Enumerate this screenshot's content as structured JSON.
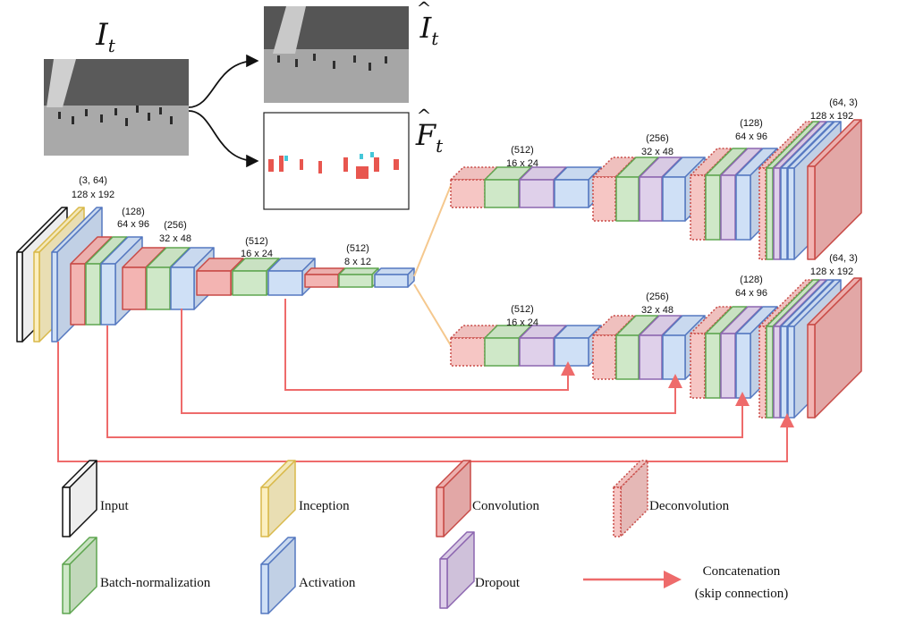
{
  "images": {
    "input_label_main": "I",
    "input_label_sub": "t",
    "pred_frame_label_main": "I",
    "pred_frame_label_sub": "t",
    "pred_flow_label_main": "F",
    "pred_flow_label_sub": "t"
  },
  "encoder": {
    "stage1": {
      "channels": "(3, 64)",
      "size": "128 x 192"
    },
    "stage2": {
      "channels": "(128)",
      "size": "64 x 96"
    },
    "stage3": {
      "channels": "(256)",
      "size": "32 x 48"
    },
    "stage4": {
      "channels": "(512)",
      "size": "16 x 24"
    },
    "stage5": {
      "channels": "(512)",
      "size": "8 x 12"
    }
  },
  "decoder_top": {
    "stage1": {
      "channels": "(512)",
      "size": "16 x 24"
    },
    "stage2": {
      "channels": "(256)",
      "size": "32 x 48"
    },
    "stage3": {
      "channels": "(128)",
      "size": "64 x 96"
    },
    "stage4": {
      "channels": "(64, 3)",
      "size": "128 x 192"
    }
  },
  "decoder_bottom": {
    "stage1": {
      "channels": "(512)",
      "size": "16 x 24"
    },
    "stage2": {
      "channels": "(256)",
      "size": "32 x 48"
    },
    "stage3": {
      "channels": "(128)",
      "size": "64 x 96"
    },
    "stage4": {
      "channels": "(64, 3)",
      "size": "128 x 192"
    }
  },
  "legend": {
    "input": "Input",
    "inception": "Inception",
    "convolution": "Convolution",
    "deconvolution": "Deconvolution",
    "batchnorm": "Batch-normalization",
    "activation": "Activation",
    "dropout": "Dropout",
    "concat_line1": "Concatenation",
    "concat_line2": "(skip connection)"
  },
  "colors": {
    "input_fill": "#ffffff",
    "input_stroke": "#111111",
    "inception_fill": "#fbefc0",
    "inception_stroke": "#d9b94a",
    "conv_fill": "#f3b4b2",
    "conv_stroke": "#c84a46",
    "deconv_fill": "#f6c6c4",
    "deconv_stroke": "#c84a46",
    "bn_fill": "#cfe8c8",
    "bn_stroke": "#5fa650",
    "act_fill": "#cfe0f6",
    "act_stroke": "#5578c0",
    "dropout_fill": "#dfd0ea",
    "dropout_stroke": "#8c66b0",
    "skip": "#ee6b6b",
    "fork": "#f5c88e"
  }
}
